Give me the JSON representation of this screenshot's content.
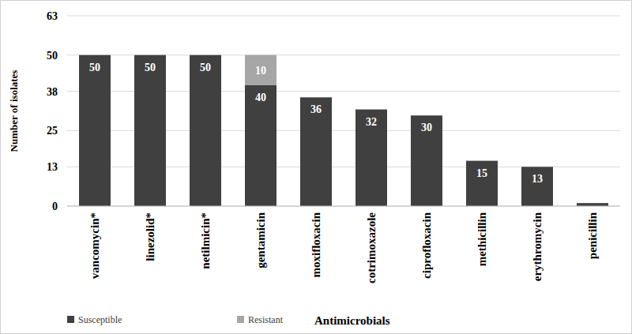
{
  "chart_data": {
    "type": "bar",
    "stacked": true,
    "data_labels": true,
    "grid": true,
    "legend": "bottom",
    "ylabel": "Number of isolates",
    "xlabel": "Antimicrobials",
    "categories": [
      "vancomycin*",
      "linezolid*",
      "netilmicin*",
      "gentamicin",
      "moxifloxacin",
      "cotrimoxazole",
      "ciprofloxacin",
      "methicillin",
      "erythromycin",
      "penicillin"
    ],
    "series": [
      {
        "name": "Susceptible",
        "color": "#404040",
        "values": [
          50,
          50,
          50,
          40,
          36,
          32,
          30,
          15,
          13,
          1
        ],
        "value_labels": [
          "50",
          "50",
          "50",
          "40",
          "36",
          "32",
          "30",
          "15",
          "13",
          null
        ]
      },
      {
        "name": "Resistant",
        "color": "#a6a6a6",
        "values": [
          0,
          0,
          0,
          10,
          0,
          0,
          0,
          0,
          0,
          0
        ],
        "value_labels": [
          null,
          null,
          null,
          "10",
          null,
          null,
          null,
          null,
          null,
          null
        ]
      }
    ],
    "ylim": [
      0,
      63
    ],
    "yticks": [
      0,
      13,
      25,
      38,
      50,
      63
    ]
  }
}
